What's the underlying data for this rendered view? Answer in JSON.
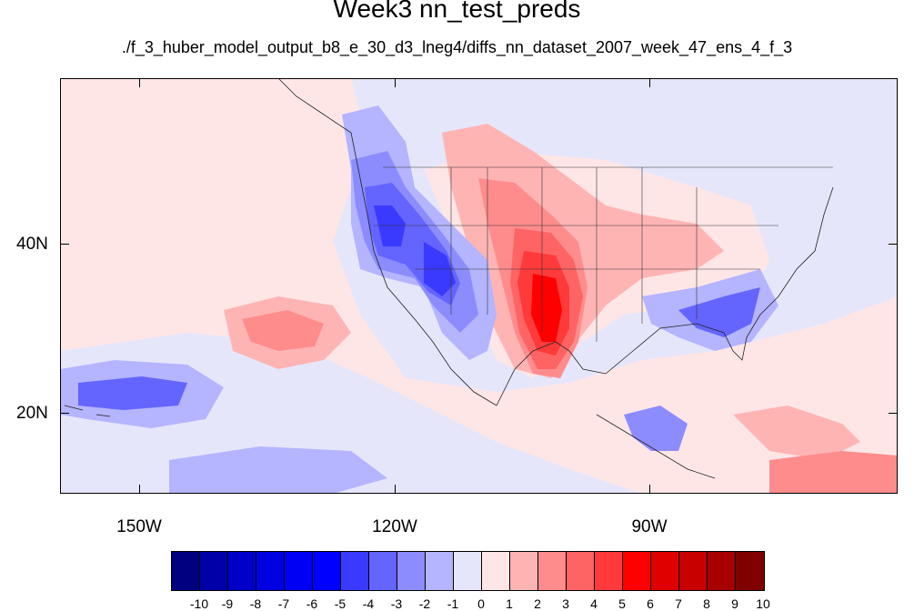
{
  "title": "Week3 nn_test_preds",
  "subtitle": "./f_3_huber_model_output_b8_e_30_d3_lneg4/diffs_nn_dataset_2007_week_47_ens_4_f_3",
  "map": {
    "projection": "cylindrical equidistant",
    "lon_range": [
      -160,
      -62
    ],
    "lat_range": [
      11,
      60
    ],
    "background_color": "#e6e6fb",
    "x_tick_labels": [
      "150W",
      "120W",
      "90W"
    ],
    "y_tick_labels": [
      "40N",
      "20N"
    ]
  },
  "colorbar": {
    "labels": [
      "-10",
      "-9",
      "-8",
      "-7",
      "-6",
      "-5",
      "-4",
      "-3",
      "-2",
      "-1",
      "0",
      "1",
      "2",
      "3",
      "4",
      "5",
      "6",
      "7",
      "8",
      "9",
      "10"
    ],
    "colors": [
      "#000080",
      "#0000a8",
      "#0000c8",
      "#0000e0",
      "#0000f5",
      "#0000ff",
      "#3a3aff",
      "#6464ff",
      "#8c8cff",
      "#b4b4ff",
      "#e6e6fb",
      "#ffe6e6",
      "#ffb4b4",
      "#ff8c8c",
      "#ff6464",
      "#ff3a3a",
      "#ff0000",
      "#e00000",
      "#c80000",
      "#a80000",
      "#800000"
    ]
  }
}
